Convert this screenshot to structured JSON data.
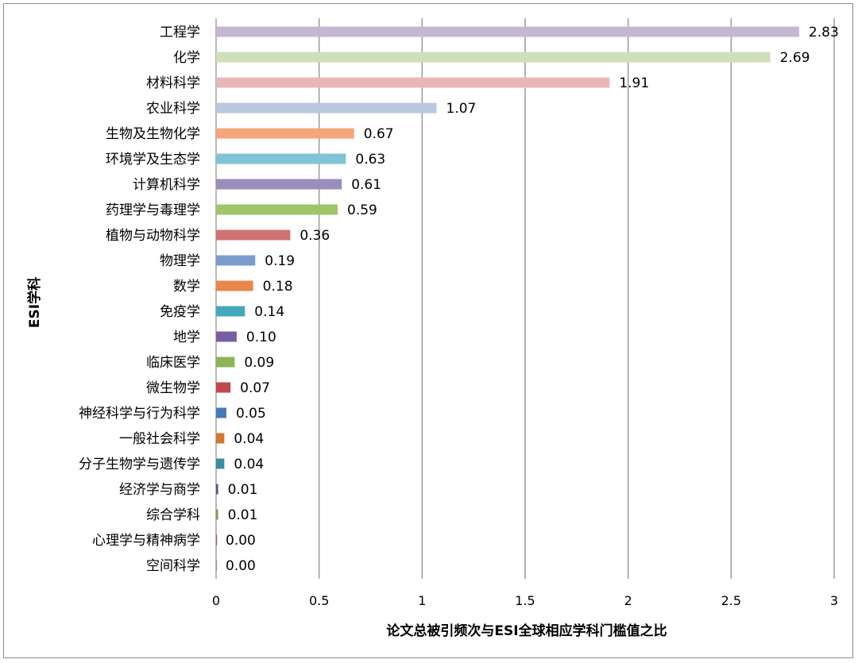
{
  "chart_data": {
    "type": "bar",
    "orientation": "horizontal",
    "xlabel": "论文总被引频次与ESI全球相应学科门槛值之比",
    "ylabel": "ESI学科",
    "xlim": [
      0,
      3
    ],
    "xticks": [
      "0",
      "0.5",
      "1",
      "1.5",
      "2",
      "2.5",
      "3"
    ],
    "tick_values": [
      0,
      0.5,
      1,
      1.5,
      2,
      2.5,
      3
    ],
    "grid": "vertical",
    "categories": [
      "工程学",
      "化学",
      "材料科学",
      "农业科学",
      "生物及生物化学",
      "环境学及生态学",
      "计算机科学",
      "药理学与毒理学",
      "植物与动物科学",
      "物理学",
      "数学",
      "免疫学",
      "地学",
      "临床医学",
      "微生物学",
      "神经科学与行为科学",
      "一般社会科学",
      "分子生物学与遗传学",
      "经济学与商学",
      "综合学科",
      "心理学与精神病学",
      "空间科学"
    ],
    "values": [
      2.83,
      2.69,
      1.91,
      1.07,
      0.67,
      0.63,
      0.61,
      0.59,
      0.36,
      0.19,
      0.18,
      0.14,
      0.1,
      0.09,
      0.07,
      0.05,
      0.04,
      0.04,
      0.01,
      0.01,
      0.0,
      0.0
    ],
    "value_labels": [
      "2.83",
      "2.69",
      "1.91",
      "1.07",
      "0.67",
      "0.63",
      "0.61",
      "0.59",
      "0.36",
      "0.19",
      "0.18",
      "0.14",
      "0.10",
      "0.09",
      "0.07",
      "0.05",
      "0.04",
      "0.04",
      "0.01",
      "0.01",
      "0.00",
      "0.00"
    ],
    "colors": [
      "#c6b6d4",
      "#cfe0b8",
      "#e8b8b8",
      "#b8c8e0",
      "#f4a67a",
      "#7ec4d4",
      "#9b8dbd",
      "#9fc56a",
      "#cf7272",
      "#7b9ccd",
      "#e8884a",
      "#45a7bd",
      "#7a5ea3",
      "#8fb356",
      "#c0474a",
      "#4579b6",
      "#d7762f",
      "#3b8ea0",
      "#5a4e94",
      "#7f9f4f",
      "#a05b5b",
      "#999999"
    ]
  }
}
